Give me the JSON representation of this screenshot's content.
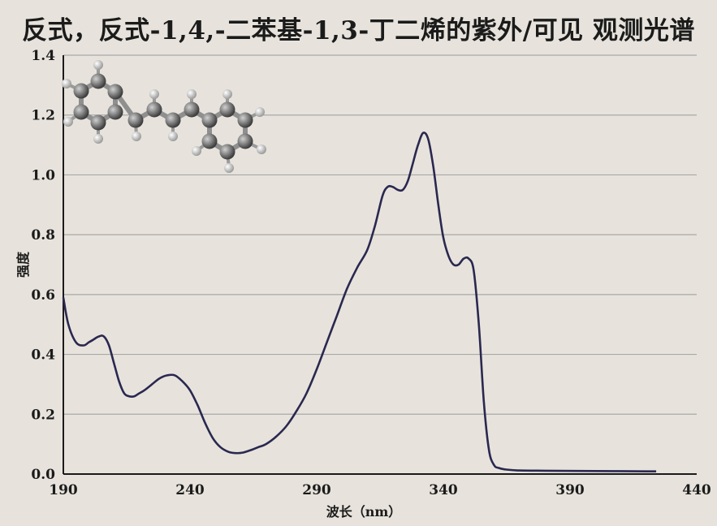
{
  "chart_data": {
    "type": "line",
    "title": "反式，反式-1,4,-二苯基-1,3-丁二烯的紫外/可见 观测光谱",
    "xlabel": "波长（nm）",
    "ylabel": "强度",
    "xlim": [
      190,
      440
    ],
    "ylim": [
      0.0,
      1.4
    ],
    "x_ticks": [
      "190",
      "240",
      "290",
      "340",
      "390",
      "440"
    ],
    "y_ticks": [
      "0.0",
      "0.2",
      "0.4",
      "0.6",
      "0.8",
      "1.0",
      "1.2",
      "1.4"
    ],
    "grid": "horizontal",
    "line_color": "#2a2850",
    "series": [
      {
        "x": [
          190,
          192,
          195,
          198,
          200,
          202,
          204,
          206,
          208,
          210,
          212,
          214,
          216,
          218,
          220,
          222,
          225,
          228,
          231,
          234,
          237,
          240,
          243,
          246,
          249,
          252,
          255,
          258,
          261,
          264,
          267,
          270,
          274,
          278,
          282,
          286,
          290,
          294,
          298,
          302,
          306,
          310,
          313,
          316,
          318,
          320,
          322,
          324,
          326,
          328,
          330,
          332,
          334,
          336,
          338,
          340,
          342,
          344,
          346,
          348,
          350,
          352,
          354,
          356,
          358,
          360,
          362,
          365,
          370,
          380,
          400,
          420,
          424
        ],
        "y": [
          0.59,
          0.5,
          0.44,
          0.43,
          0.44,
          0.45,
          0.46,
          0.46,
          0.43,
          0.37,
          0.31,
          0.27,
          0.26,
          0.26,
          0.27,
          0.28,
          0.3,
          0.32,
          0.33,
          0.33,
          0.31,
          0.28,
          0.23,
          0.17,
          0.12,
          0.09,
          0.075,
          0.07,
          0.072,
          0.08,
          0.09,
          0.1,
          0.125,
          0.16,
          0.21,
          0.27,
          0.35,
          0.44,
          0.53,
          0.62,
          0.69,
          0.75,
          0.83,
          0.93,
          0.96,
          0.96,
          0.95,
          0.95,
          0.98,
          1.04,
          1.1,
          1.14,
          1.12,
          1.03,
          0.9,
          0.79,
          0.73,
          0.7,
          0.7,
          0.72,
          0.72,
          0.68,
          0.5,
          0.24,
          0.08,
          0.03,
          0.02,
          0.015,
          0.012,
          0.011,
          0.01,
          0.009,
          0.009
        ]
      }
    ]
  }
}
